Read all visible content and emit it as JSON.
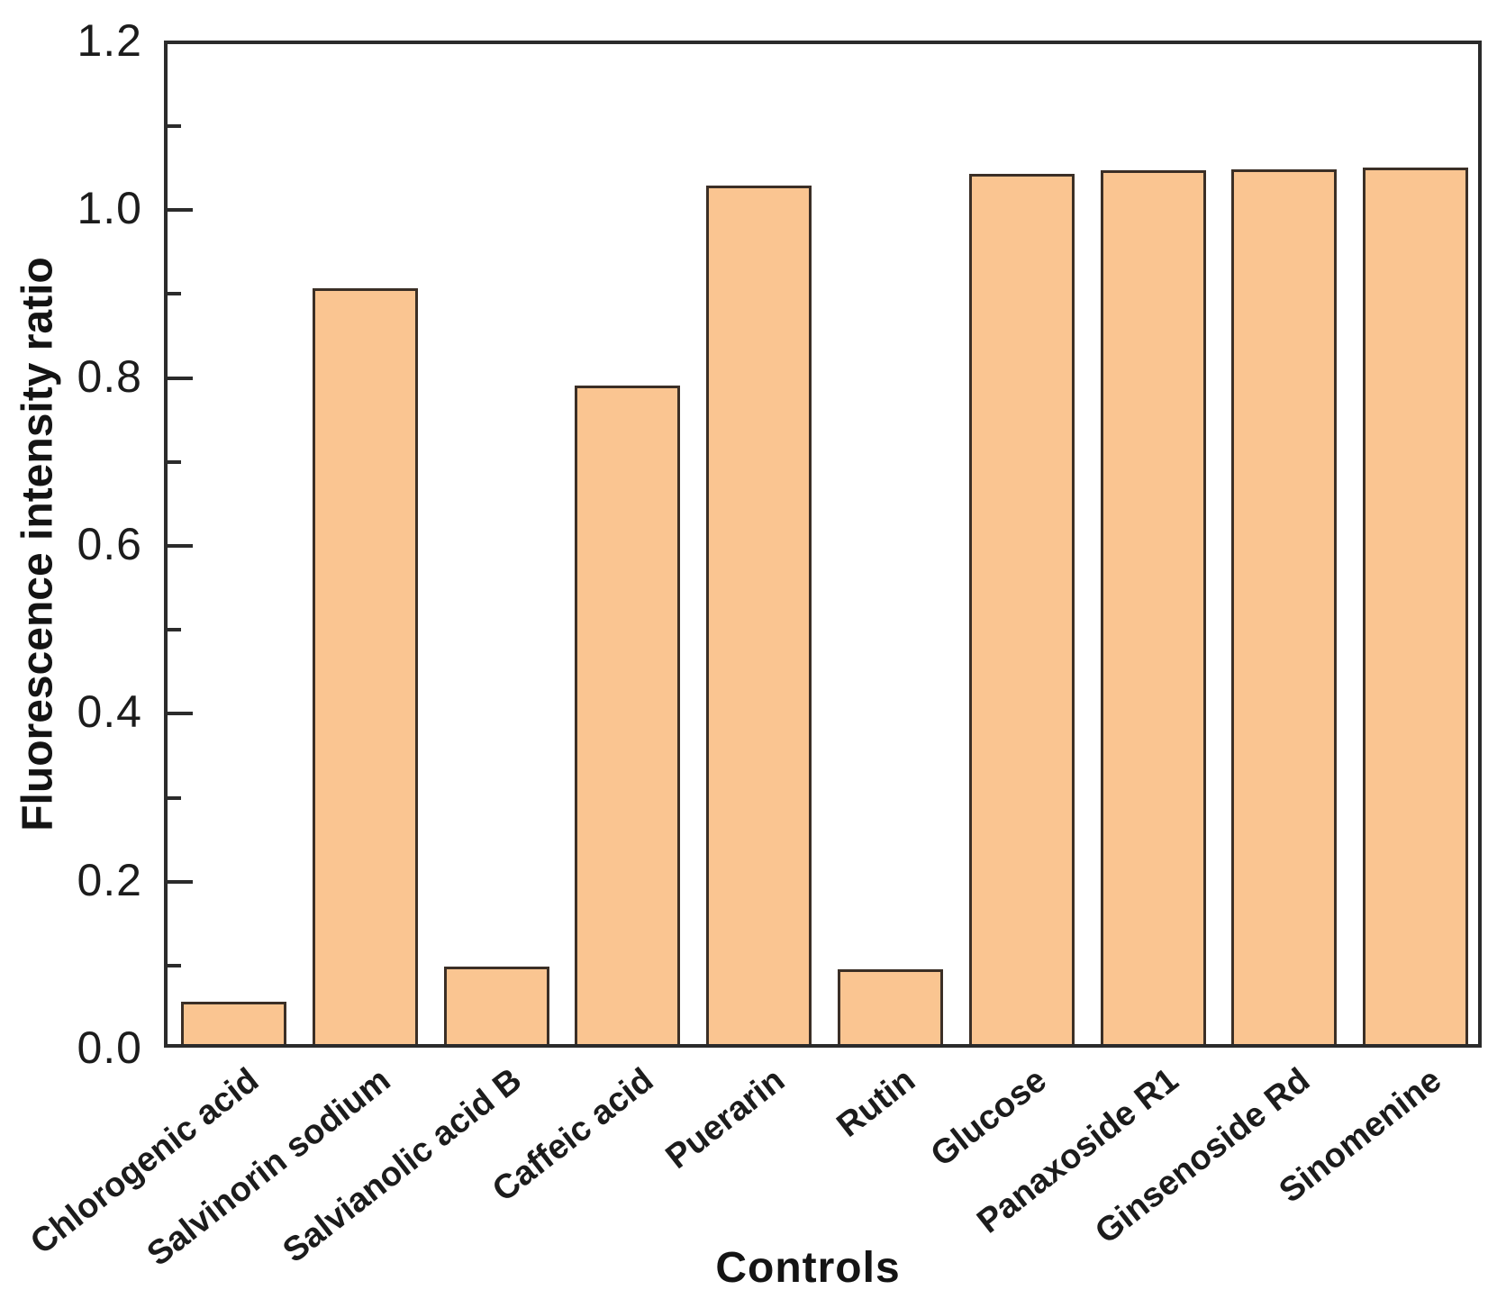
{
  "chart_data": {
    "type": "bar",
    "title": "",
    "xlabel": "Controls",
    "ylabel": "Fluorescence intensity ratio",
    "categories": [
      "Chlorogenic acid",
      "Salvinorin sodium",
      "Salvianolic acid B",
      "Caffeic acid",
      "Puerarin",
      "Rutin",
      "Glucose",
      "Panaxoside R1",
      "Ginsenoside Rd",
      "Sinomenine"
    ],
    "values": [
      0.05,
      0.9,
      0.092,
      0.785,
      1.023,
      0.089,
      1.037,
      1.041,
      1.042,
      1.044
    ],
    "ylim": [
      0,
      1.2
    ],
    "ytick_labels": [
      "0.0",
      "0.2",
      "0.4",
      "0.6",
      "0.8",
      "1.0",
      "1.2"
    ],
    "ytick_major_step": 0.2,
    "ytick_minor_step": 0.1,
    "grid": false,
    "legend": "none",
    "bar_fill_color": "#FAC591",
    "bar_edge_color": "#3B2F26",
    "axis_color": "#2B2B2B",
    "text_color": "#1C1C1C"
  }
}
